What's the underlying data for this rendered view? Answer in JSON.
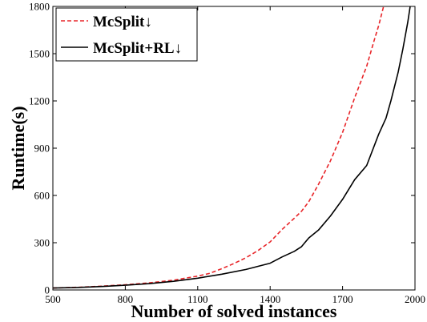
{
  "chart_data": {
    "type": "line",
    "xlabel": "Number of solved instances",
    "ylabel": "Runtime(s)",
    "xlim": [
      500,
      2000
    ],
    "ylim": [
      0,
      1800
    ],
    "xticks": [
      500,
      800,
      1100,
      1400,
      1700,
      2000
    ],
    "yticks": [
      0,
      300,
      600,
      900,
      1200,
      1500,
      1800
    ],
    "grid": false,
    "legend_position": "top-left",
    "series": [
      {
        "name": "McSplit↓",
        "color": "#e8262a",
        "dash": "dashed",
        "x": [
          500,
          600,
          700,
          800,
          900,
          1000,
          1100,
          1150,
          1200,
          1250,
          1300,
          1350,
          1400,
          1450,
          1500,
          1530,
          1560,
          1600,
          1650,
          1700,
          1750,
          1800,
          1830,
          1850,
          1870
        ],
        "y": [
          12,
          17,
          24,
          33,
          45,
          62,
          88,
          106,
          135,
          168,
          205,
          250,
          305,
          385,
          455,
          500,
          560,
          670,
          820,
          1000,
          1220,
          1420,
          1580,
          1680,
          1800
        ]
      },
      {
        "name": "McSplit+RL↓",
        "color": "#000000",
        "dash": "solid",
        "x": [
          500,
          600,
          700,
          800,
          900,
          1000,
          1100,
          1200,
          1300,
          1350,
          1400,
          1450,
          1500,
          1530,
          1560,
          1600,
          1650,
          1700,
          1750,
          1800,
          1850,
          1880,
          1900,
          1930,
          1950,
          1970,
          1980
        ],
        "y": [
          12,
          16,
          22,
          30,
          40,
          55,
          75,
          100,
          130,
          150,
          170,
          210,
          245,
          275,
          330,
          380,
          470,
          575,
          700,
          790,
          990,
          1090,
          1200,
          1380,
          1530,
          1700,
          1800
        ]
      }
    ]
  }
}
